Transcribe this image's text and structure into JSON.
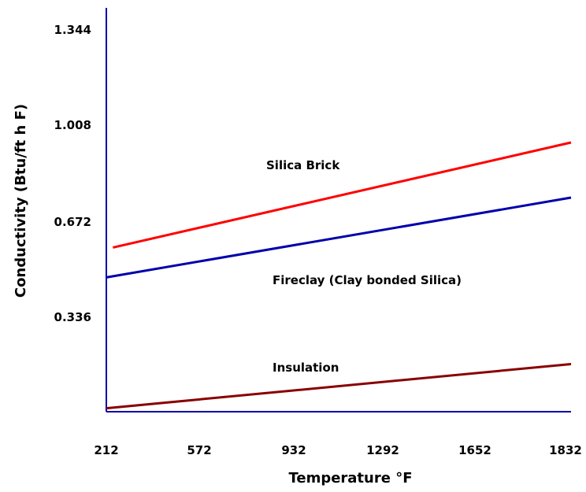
{
  "chart_data": {
    "type": "line",
    "title": "",
    "xlabel": "Temperature °F",
    "ylabel": "Conductivity (Btu/ft h F)",
    "xlim": [
      212,
      1832
    ],
    "ylim": [
      0,
      1.344
    ],
    "x_ticks": [
      "212",
      "572",
      "932",
      "1292",
      "1652",
      "1832"
    ],
    "y_ticks": [
      "1.344",
      "1.008",
      "0.672",
      "0.336"
    ],
    "grid": false,
    "series": [
      {
        "name": "Silica Brick",
        "color": "#ff0000",
        "x": [
          235,
          1832
        ],
        "y": [
          0.572,
          0.938
        ]
      },
      {
        "name": "Fireclay (Clay bonded Silica)",
        "color": "#0000aa",
        "x": [
          212,
          1832
        ],
        "y": [
          0.468,
          0.746
        ]
      },
      {
        "name": "Insulation",
        "color": "#880000",
        "x": [
          212,
          1832
        ],
        "y": [
          0.012,
          0.166
        ]
      }
    ]
  }
}
